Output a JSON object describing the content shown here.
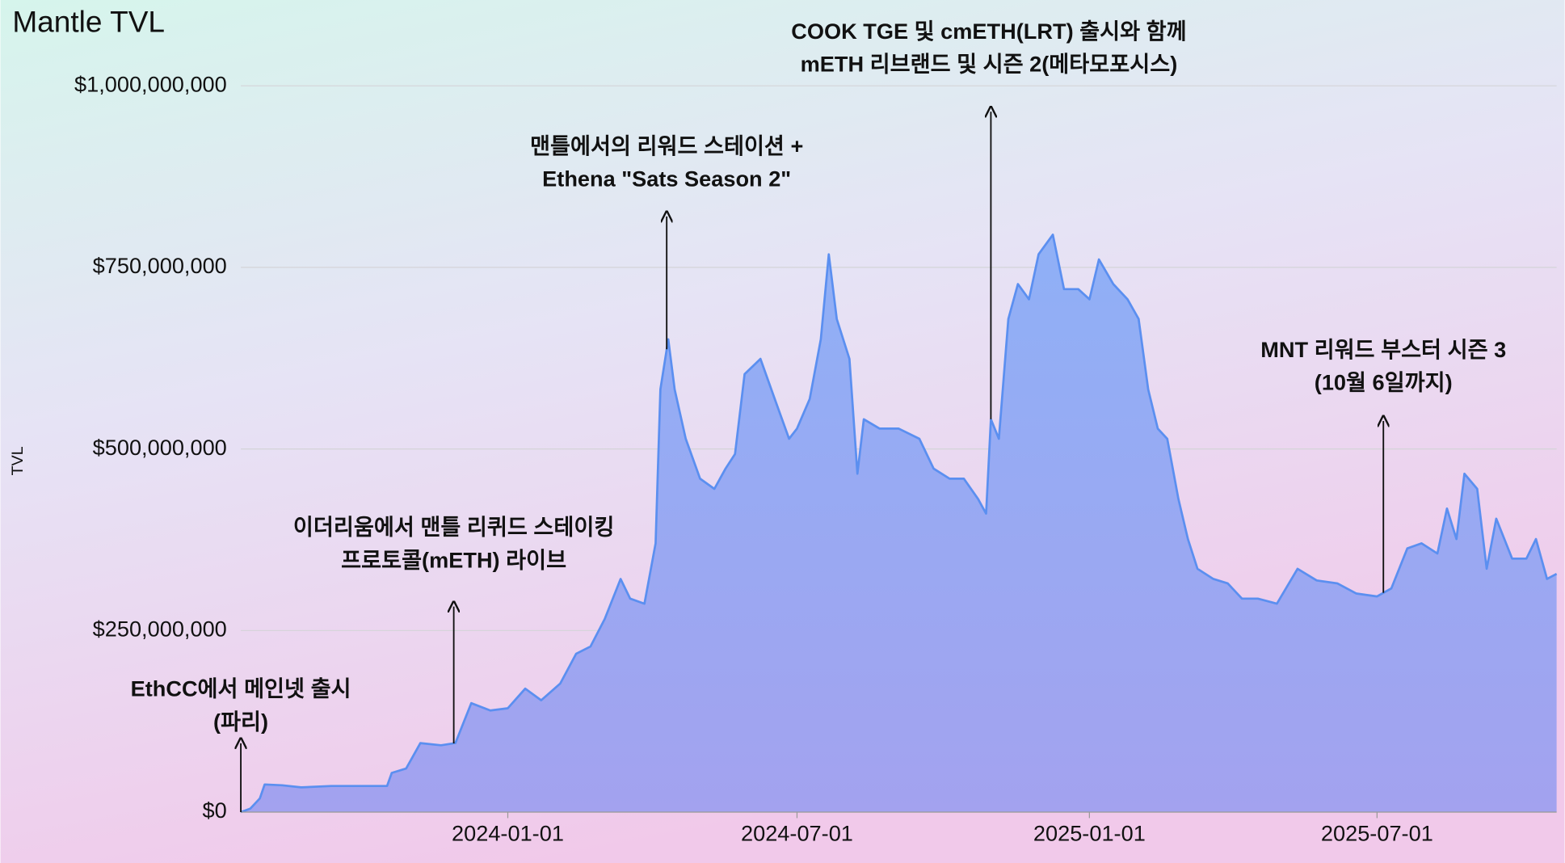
{
  "chart_data": {
    "type": "area",
    "title": "Mantle TVL",
    "y_label": "TVL",
    "color": "#5b8ff0",
    "grid": true,
    "xlim": [
      "2023-07-17",
      "2025-10-22"
    ],
    "xticks": [
      "2024-01-01",
      "2024-07-01",
      "2025-01-01",
      "2025-07-01"
    ],
    "ylim": [
      0,
      1000000000
    ],
    "yticks": [
      {
        "value": 0,
        "label": "$0"
      },
      {
        "value": 250000000,
        "label": "$250,000,000"
      },
      {
        "value": 500000000,
        "label": "$500,000,000"
      },
      {
        "value": 750000000,
        "label": "$750,000,000"
      },
      {
        "value": 1000000000,
        "label": "$1,000,000,000"
      }
    ],
    "x": [
      "2023-07-17",
      "2023-07-23",
      "2023-07-29",
      "2023-08-01",
      "2023-08-12",
      "2023-08-24",
      "2023-09-12",
      "2023-10-01",
      "2023-10-17",
      "2023-10-20",
      "2023-10-29",
      "2023-11-07",
      "2023-11-20",
      "2023-11-29",
      "2023-12-09",
      "2023-12-21",
      "2024-01-01",
      "2024-01-12",
      "2024-01-22",
      "2024-02-03",
      "2024-02-13",
      "2024-02-22",
      "2024-03-02",
      "2024-03-12",
      "2024-03-18",
      "2024-03-27",
      "2024-04-03",
      "2024-04-06",
      "2024-04-11",
      "2024-04-15",
      "2024-04-22",
      "2024-05-01",
      "2024-05-10",
      "2024-05-17",
      "2024-05-23",
      "2024-05-29",
      "2024-06-08",
      "2024-06-17",
      "2024-06-26",
      "2024-07-01",
      "2024-07-09",
      "2024-07-16",
      "2024-07-21",
      "2024-07-26",
      "2024-08-03",
      "2024-08-08",
      "2024-08-12",
      "2024-08-22",
      "2024-09-03",
      "2024-09-16",
      "2024-09-25",
      "2024-10-05",
      "2024-10-14",
      "2024-10-23",
      "2024-10-28",
      "2024-10-31",
      "2024-11-05",
      "2024-11-11",
      "2024-11-17",
      "2024-11-24",
      "2024-11-30",
      "2024-12-09",
      "2024-12-16",
      "2024-12-25",
      "2025-01-01",
      "2025-01-07",
      "2025-01-16",
      "2025-01-25",
      "2025-02-01",
      "2025-02-07",
      "2025-02-13",
      "2025-02-19",
      "2025-02-26",
      "2025-03-04",
      "2025-03-10",
      "2025-03-20",
      "2025-03-29",
      "2025-04-07",
      "2025-04-17",
      "2025-04-29",
      "2025-05-12",
      "2025-05-24",
      "2025-06-06",
      "2025-06-18",
      "2025-07-01",
      "2025-07-10",
      "2025-07-20",
      "2025-07-29",
      "2025-08-08",
      "2025-08-14",
      "2025-08-20",
      "2025-08-25",
      "2025-09-02",
      "2025-09-08",
      "2025-09-14",
      "2025-09-24",
      "2025-10-03",
      "2025-10-09",
      "2025-10-16",
      "2025-10-22"
    ],
    "values": [
      0,
      5000000,
      19000000,
      38000000,
      37000000,
      34000000,
      36000000,
      36000000,
      36000000,
      54000000,
      60000000,
      95000000,
      92000000,
      95000000,
      150000000,
      140000000,
      143000000,
      170000000,
      154000000,
      177000000,
      218000000,
      228000000,
      266000000,
      321000000,
      294000000,
      287000000,
      370000000,
      582000000,
      651000000,
      582000000,
      514000000,
      459000000,
      445000000,
      473000000,
      493000000,
      603000000,
      624000000,
      569000000,
      514000000,
      528000000,
      569000000,
      651000000,
      768000000,
      679000000,
      624000000,
      466000000,
      541000000,
      528000000,
      528000000,
      514000000,
      473000000,
      459000000,
      459000000,
      431000000,
      411000000,
      541000000,
      514000000,
      679000000,
      727000000,
      706000000,
      768000000,
      795000000,
      720000000,
      720000000,
      706000000,
      761000000,
      727000000,
      706000000,
      679000000,
      582000000,
      528000000,
      514000000,
      431000000,
      376000000,
      335000000,
      321000000,
      315000000,
      294000000,
      294000000,
      287000000,
      335000000,
      319000000,
      315000000,
      301000000,
      297000000,
      308000000,
      363000000,
      370000000,
      356000000,
      418000000,
      376000000,
      466000000,
      445000000,
      335000000,
      404000000,
      349000000,
      349000000,
      376000000,
      321000000,
      328000000
    ],
    "annotations": [
      {
        "lines": [
          "EthCC에서 메인넷 출시",
          "(파리)"
        ],
        "x": "2023-07-17"
      },
      {
        "lines": [
          "이더리움에서 맨틀 리퀴드 스테이킹",
          "프로토콜(mETH) 라이브"
        ],
        "x": "2023-11-28"
      },
      {
        "lines": [
          "맨틀에서의 리워드 스테이션 +",
          "Ethena \"Sats Season 2\""
        ],
        "x": "2024-04-10"
      },
      {
        "lines": [
          "COOK TGE 및 cmETH(LRT) 출시와 함께",
          "mETH 리브랜드 및 시즌 2(메타모포시스)"
        ],
        "x": "2024-10-31"
      },
      {
        "lines": [
          "MNT 리워드 부스터 시즌 3",
          "(10월 6일까지)"
        ],
        "x": "2025-07-05"
      }
    ]
  }
}
